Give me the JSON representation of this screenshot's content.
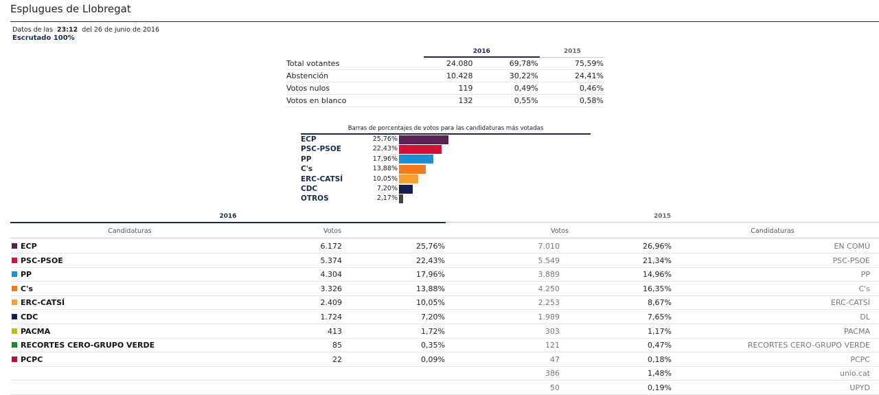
{
  "page": {
    "title": "Esplugues de Llobregat",
    "data_prefix": "Datos de las",
    "time": "23:12",
    "date_text": "del 26 de junio de 2016",
    "counted": "Escrutado 100%"
  },
  "summary": {
    "year_new": "2016",
    "year_old": "2015",
    "rows": [
      {
        "label": "Total votantes",
        "value": "24.080",
        "pct": "69,78%",
        "pct_old": "75,59%"
      },
      {
        "label": "Abstención",
        "value": "10.428",
        "pct": "30,22%",
        "pct_old": "24,41%"
      },
      {
        "label": "Votos nulos",
        "value": "119",
        "pct": "0,49%",
        "pct_old": "0,46%"
      },
      {
        "label": "Votos en blanco",
        "value": "132",
        "pct": "0,55%",
        "pct_old": "0,58%"
      }
    ]
  },
  "chart_data": {
    "type": "bar",
    "title": "Barras de porcentajes de votos para las candidaturas más votadas",
    "categories": [
      "ECP",
      "PSC-PSOE",
      "PP",
      "C's",
      "ERC-CATSÍ",
      "CDC",
      "OTROS"
    ],
    "values": [
      25.76,
      22.43,
      17.96,
      13.88,
      10.05,
      7.2,
      2.17
    ],
    "labels": [
      "25,76%",
      "22,43%",
      "17,96%",
      "13,88%",
      "10,05%",
      "7,20%",
      "2,17%"
    ],
    "colors": [
      "#5b2155",
      "#d4103a",
      "#1a8fd6",
      "#f47a1f",
      "#f5a030",
      "#16204d",
      "#444444"
    ]
  },
  "results": {
    "year_new": "2016",
    "year_old": "2015",
    "col_candidaturas": "Candidaturas",
    "col_votos": "Votos",
    "col_votos_old": "Votos",
    "col_candidaturas_old": "Candidaturas",
    "rows": [
      {
        "party": "ECP",
        "color": "#5b2155",
        "votes": "6.172",
        "pct": "25,76%",
        "votes_old": "7.010",
        "pct_old": "26,96%",
        "party_old": "EN COMÚ"
      },
      {
        "party": "PSC-PSOE",
        "color": "#d4103a",
        "votes": "5.374",
        "pct": "22,43%",
        "votes_old": "5.549",
        "pct_old": "21,34%",
        "party_old": "PSC-PSOE"
      },
      {
        "party": "PP",
        "color": "#1a8fd6",
        "votes": "4.304",
        "pct": "17,96%",
        "votes_old": "3.889",
        "pct_old": "14,96%",
        "party_old": "PP"
      },
      {
        "party": "C's",
        "color": "#f47a1f",
        "votes": "3.326",
        "pct": "13,88%",
        "votes_old": "4.250",
        "pct_old": "16,35%",
        "party_old": "C's"
      },
      {
        "party": "ERC-CATSÍ",
        "color": "#f5a030",
        "votes": "2.409",
        "pct": "10,05%",
        "votes_old": "2.253",
        "pct_old": "8,67%",
        "party_old": "ERC-CATSÍ"
      },
      {
        "party": "CDC",
        "color": "#16204d",
        "votes": "1.724",
        "pct": "7,20%",
        "votes_old": "1.989",
        "pct_old": "7,65%",
        "party_old": "DL"
      },
      {
        "party": "PACMA",
        "color": "#b5c21a",
        "votes": "413",
        "pct": "1,72%",
        "votes_old": "303",
        "pct_old": "1,17%",
        "party_old": "PACMA"
      },
      {
        "party": "RECORTES CERO-GRUPO VERDE",
        "color": "#178a2a",
        "votes": "85",
        "pct": "0,35%",
        "votes_old": "121",
        "pct_old": "0,47%",
        "party_old": "RECORTES CERO-GRUPO VERDE"
      },
      {
        "party": "PCPC",
        "color": "#b0142a",
        "votes": "22",
        "pct": "0,09%",
        "votes_old": "47",
        "pct_old": "0,18%",
        "party_old": "PCPC"
      },
      {
        "party": "",
        "color": "",
        "votes": "",
        "pct": "",
        "votes_old": "386",
        "pct_old": "1,48%",
        "party_old": "unio.cat"
      },
      {
        "party": "",
        "color": "",
        "votes": "",
        "pct": "",
        "votes_old": "50",
        "pct_old": "0,19%",
        "party_old": "UPYD"
      }
    ]
  }
}
